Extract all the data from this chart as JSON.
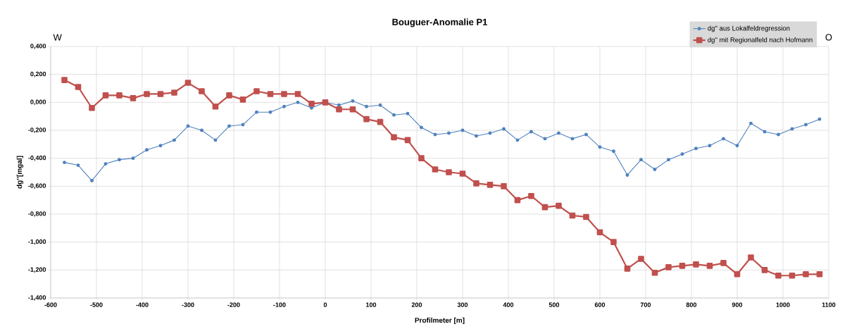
{
  "chart_data": {
    "type": "line",
    "title": "Bouguer-Anomalie P1",
    "xlabel": "Profilmeter [m]",
    "ylabel": "dg''[mgal]",
    "annotations": [
      "W",
      "O"
    ],
    "x": [
      -570,
      -540,
      -510,
      -480,
      -450,
      -420,
      -390,
      -360,
      -330,
      -300,
      -270,
      -240,
      -210,
      -180,
      -150,
      -120,
      -90,
      -60,
      -30,
      0,
      30,
      60,
      90,
      120,
      150,
      180,
      210,
      240,
      270,
      300,
      330,
      360,
      390,
      420,
      450,
      480,
      510,
      540,
      570,
      600,
      630,
      660,
      690,
      720,
      750,
      780,
      810,
      840,
      870,
      900,
      930,
      960,
      990,
      1020,
      1050,
      1080
    ],
    "series": [
      {
        "name": "dg'' aus Lokalfeldregression",
        "color": "#4f81bd",
        "marker": "circle",
        "values": [
          -0.43,
          -0.45,
          -0.56,
          -0.44,
          -0.41,
          -0.4,
          -0.34,
          -0.31,
          -0.27,
          -0.17,
          -0.2,
          -0.27,
          -0.17,
          -0.16,
          -0.07,
          -0.07,
          -0.03,
          0.0,
          -0.04,
          0.0,
          -0.02,
          0.01,
          -0.03,
          -0.02,
          -0.09,
          -0.08,
          -0.18,
          -0.23,
          -0.22,
          -0.2,
          -0.24,
          -0.22,
          -0.19,
          -0.27,
          -0.21,
          -0.26,
          -0.22,
          -0.26,
          -0.23,
          -0.32,
          -0.35,
          -0.52,
          -0.41,
          -0.48,
          -0.41,
          -0.37,
          -0.33,
          -0.31,
          -0.26,
          -0.31,
          -0.15,
          -0.21,
          -0.23,
          -0.19,
          -0.16,
          -0.12
        ]
      },
      {
        "name": "dg'' mit Regionalfeld nach Hofmann",
        "color": "#c0504d",
        "marker": "square",
        "values": [
          0.16,
          0.11,
          -0.04,
          0.05,
          0.05,
          0.03,
          0.06,
          0.06,
          0.07,
          0.14,
          0.08,
          -0.03,
          0.05,
          0.02,
          0.08,
          0.06,
          0.06,
          0.06,
          -0.01,
          0.0,
          -0.05,
          -0.05,
          -0.12,
          -0.14,
          -0.25,
          -0.27,
          -0.4,
          -0.48,
          -0.5,
          -0.51,
          -0.58,
          -0.59,
          -0.6,
          -0.7,
          -0.67,
          -0.75,
          -0.74,
          -0.81,
          -0.82,
          -0.93,
          -1.0,
          -1.19,
          -1.12,
          -1.22,
          -1.18,
          -1.17,
          -1.16,
          -1.17,
          -1.15,
          -1.23,
          -1.11,
          -1.2,
          -1.24,
          -1.24,
          -1.23,
          -1.23
        ]
      }
    ],
    "xlim": [
      -600,
      1100
    ],
    "xticks": [
      -600,
      -500,
      -400,
      -300,
      -200,
      -100,
      0,
      100,
      200,
      300,
      400,
      500,
      600,
      700,
      800,
      900,
      1000,
      1100
    ],
    "ylim": [
      -1.4,
      0.4
    ],
    "yticks": [
      {
        "value": -1.4,
        "label": "-1,400"
      },
      {
        "value": -1.2,
        "label": "-1,200"
      },
      {
        "value": -1.0,
        "label": "-1,000"
      },
      {
        "value": -0.8,
        "label": "-0,800"
      },
      {
        "value": -0.6,
        "label": "-0,600"
      },
      {
        "value": -0.4,
        "label": "-0,400"
      },
      {
        "value": -0.2,
        "label": "-0,200"
      },
      {
        "value": 0,
        "label": "0,000"
      },
      {
        "value": 0.2,
        "label": "0,200"
      },
      {
        "value": 0.4,
        "label": "0,400"
      }
    ],
    "grid": true,
    "legend": "top right"
  }
}
